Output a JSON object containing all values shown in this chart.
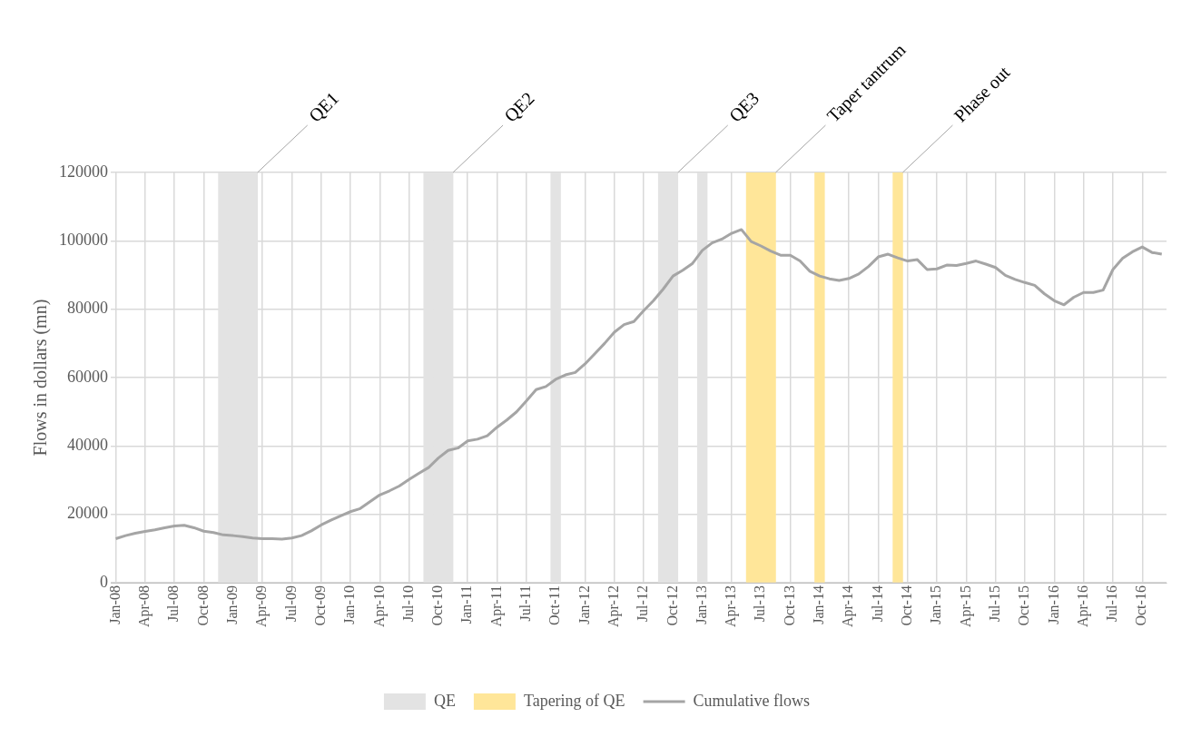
{
  "chart_data": {
    "type": "line",
    "ylabel": "Flows in dollars (mn)",
    "xlim": [
      "2007-12-16",
      "2016-12-16"
    ],
    "xticks": [
      {
        "value": "2008-01",
        "label": "Jan-08"
      },
      {
        "value": "2008-04",
        "label": "Apr-08"
      },
      {
        "value": "2008-07",
        "label": "Jul-08"
      },
      {
        "value": "2008-10",
        "label": "Oct-08"
      },
      {
        "value": "2009-01",
        "label": "Jan-09"
      },
      {
        "value": "2009-04",
        "label": "Apr-09"
      },
      {
        "value": "2009-07",
        "label": "Jul-09"
      },
      {
        "value": "2009-10",
        "label": "Oct-09"
      },
      {
        "value": "2010-01",
        "label": "Jan-10"
      },
      {
        "value": "2010-04",
        "label": "Apr-10"
      },
      {
        "value": "2010-07",
        "label": "Jul-10"
      },
      {
        "value": "2010-10",
        "label": "Oct-10"
      },
      {
        "value": "2011-01",
        "label": "Jan-11"
      },
      {
        "value": "2011-04",
        "label": "Apr-11"
      },
      {
        "value": "2011-07",
        "label": "Jul-11"
      },
      {
        "value": "2011-10",
        "label": "Oct-11"
      },
      {
        "value": "2012-01",
        "label": "Jan-12"
      },
      {
        "value": "2012-04",
        "label": "Apr-12"
      },
      {
        "value": "2012-07",
        "label": "Jul-12"
      },
      {
        "value": "2012-10",
        "label": "Oct-12"
      },
      {
        "value": "2013-01",
        "label": "Jan-13"
      },
      {
        "value": "2013-04",
        "label": "Apr-13"
      },
      {
        "value": "2013-07",
        "label": "Jul-13"
      },
      {
        "value": "2013-10",
        "label": "Oct-13"
      },
      {
        "value": "2014-01",
        "label": "Jan-14"
      },
      {
        "value": "2014-04",
        "label": "Apr-14"
      },
      {
        "value": "2014-07",
        "label": "Jul-14"
      },
      {
        "value": "2014-10",
        "label": "Oct-14"
      },
      {
        "value": "2015-01",
        "label": "Jan-15"
      },
      {
        "value": "2015-04",
        "label": "Apr-15"
      },
      {
        "value": "2015-07",
        "label": "Jul-15"
      },
      {
        "value": "2015-10",
        "label": "Oct-15"
      },
      {
        "value": "2016-01",
        "label": "Jan-16"
      },
      {
        "value": "2016-04",
        "label": "Apr-16"
      },
      {
        "value": "2016-07",
        "label": "Jul-16"
      },
      {
        "value": "2016-10",
        "label": "Oct-16"
      }
    ],
    "ylim": [
      0,
      120000
    ],
    "yticks": [
      0,
      20000,
      40000,
      60000,
      80000,
      100000,
      120000
    ],
    "grid": true,
    "legend": "bottom",
    "marker": "none",
    "line_style": "solid",
    "annotations": [
      {
        "text": "QE1",
        "x": "2009-03",
        "y": 120000
      },
      {
        "text": "QE2",
        "x": "2010-11",
        "y": 120000
      },
      {
        "text": "QE3",
        "x": "2012-10",
        "y": 120000
      },
      {
        "text": "Taper tantrum",
        "x": "2013-08",
        "y": 120000
      },
      {
        "text": "Phase out",
        "x": "2014-09",
        "y": 120000
      }
    ],
    "series": [
      {
        "type": "bar",
        "name": "QE",
        "color": "#e3e3e3",
        "x": [
          "2008-12",
          "2009-01",
          "2009-02",
          "2009-03",
          "2010-09",
          "2010-10",
          "2010-11",
          "2011-10",
          "2012-09",
          "2012-10",
          "2013-01"
        ],
        "values": [
          120000,
          120000,
          120000,
          120000,
          120000,
          120000,
          120000,
          120000,
          120000,
          120000,
          120000
        ]
      },
      {
        "type": "bar",
        "name": "Tapering of QE",
        "color": "#ffe699",
        "x": [
          "2013-06",
          "2013-07",
          "2013-08",
          "2014-01",
          "2014-09"
        ],
        "values": [
          120000,
          120000,
          120000,
          120000,
          120000
        ]
      },
      {
        "name": "Cumulative flows",
        "color": "#a5a5a5",
        "x": [
          "2008-01",
          "2008-02",
          "2008-03",
          "2008-04",
          "2008-05",
          "2008-06",
          "2008-07",
          "2008-08",
          "2008-09",
          "2008-10",
          "2008-11",
          "2008-12",
          "2009-01",
          "2009-02",
          "2009-03",
          "2009-04",
          "2009-05",
          "2009-06",
          "2009-07",
          "2009-08",
          "2009-09",
          "2009-10",
          "2009-11",
          "2009-12",
          "2010-01",
          "2010-02",
          "2010-03",
          "2010-04",
          "2010-05",
          "2010-06",
          "2010-07",
          "2010-08",
          "2010-09",
          "2010-10",
          "2010-11",
          "2010-12",
          "2011-01",
          "2011-02",
          "2011-03",
          "2011-04",
          "2011-05",
          "2011-06",
          "2011-07",
          "2011-08",
          "2011-09",
          "2011-10",
          "2011-11",
          "2011-12",
          "2012-01",
          "2012-02",
          "2012-03",
          "2012-04",
          "2012-05",
          "2012-06",
          "2012-07",
          "2012-08",
          "2012-09",
          "2012-10",
          "2012-11",
          "2012-12",
          "2013-01",
          "2013-02",
          "2013-03",
          "2013-04",
          "2013-05",
          "2013-06",
          "2013-07",
          "2013-08",
          "2013-09",
          "2013-10",
          "2013-11",
          "2013-12",
          "2014-01",
          "2014-02",
          "2014-03",
          "2014-04",
          "2014-05",
          "2014-06",
          "2014-07",
          "2014-08",
          "2014-09",
          "2014-10",
          "2014-11",
          "2014-12",
          "2015-01",
          "2015-02",
          "2015-03",
          "2015-04",
          "2015-05",
          "2015-06",
          "2015-07",
          "2015-08",
          "2015-09",
          "2015-10",
          "2015-11",
          "2015-12",
          "2016-01",
          "2016-02",
          "2016-03",
          "2016-04",
          "2016-05",
          "2016-06",
          "2016-07",
          "2016-08",
          "2016-09",
          "2016-10",
          "2016-11",
          "2016-12"
        ],
        "values": [
          12900,
          13800,
          14500,
          15000,
          15500,
          16100,
          16600,
          16800,
          16100,
          15100,
          14700,
          14000,
          13800,
          13500,
          13100,
          12900,
          12900,
          12800,
          13100,
          13800,
          15200,
          16900,
          18300,
          19600,
          20800,
          21700,
          23700,
          25700,
          26900,
          28300,
          30200,
          32000,
          33700,
          36500,
          38700,
          39400,
          41500,
          42000,
          43000,
          45500,
          47600,
          50000,
          53200,
          56500,
          57400,
          59500,
          60800,
          61500,
          64000,
          67000,
          70000,
          73300,
          75500,
          76400,
          79600,
          82500,
          85900,
          89700,
          91400,
          93400,
          97200,
          99400,
          100500,
          102200,
          103300,
          99800,
          98500,
          97000,
          95800,
          95800,
          94100,
          91100,
          89700,
          88900,
          88400,
          89000,
          90300,
          92500,
          95300,
          96100,
          95000,
          94100,
          94500,
          91600,
          91800,
          92900,
          92800,
          93400,
          94100,
          93200,
          92200,
          89900,
          88700,
          87800,
          87000,
          84500,
          82500,
          81300,
          83500,
          84900,
          84900,
          85600,
          91600,
          94900,
          96800,
          98200,
          96600,
          96100
        ]
      }
    ]
  }
}
